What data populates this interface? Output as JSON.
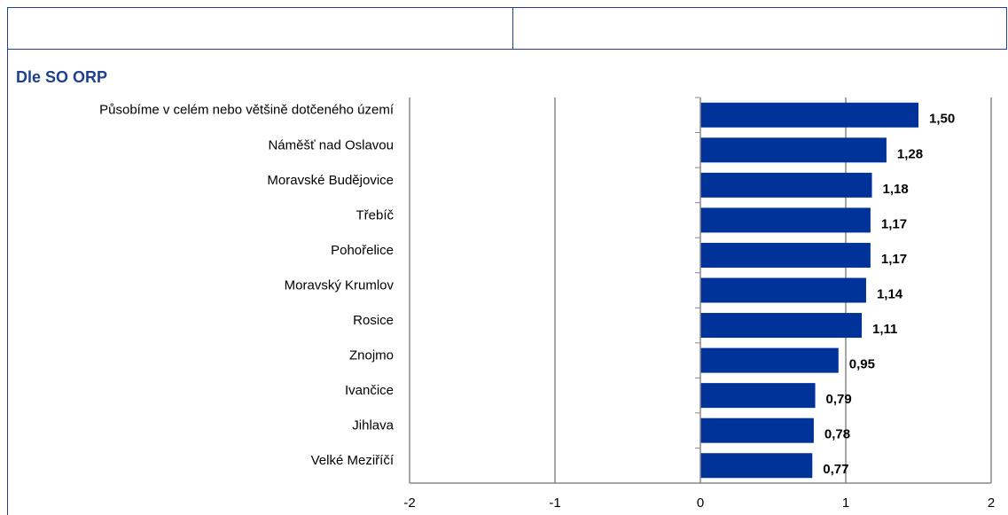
{
  "chart_data": {
    "type": "barh",
    "title": "Dle SO ORP",
    "categories": [
      "Působíme v celém nebo většině dotčeného území",
      "Náměšť nad Oslavou",
      "Moravské Budějovice",
      "Třebíč",
      "Pohořelice",
      "Moravský Krumlov",
      "Rosice",
      "Znojmo",
      "Ivančice",
      "Jihlava",
      "Velké Meziříčí"
    ],
    "values": [
      1.5,
      1.28,
      1.18,
      1.17,
      1.17,
      1.14,
      1.11,
      0.95,
      0.79,
      0.78,
      0.77
    ],
    "value_labels": [
      "1,50",
      "1,28",
      "1,18",
      "1,17",
      "1,17",
      "1,14",
      "1,11",
      "0,95",
      "0,79",
      "0,78",
      "0,77"
    ],
    "color": "#003399",
    "xlim": [
      -2,
      2
    ],
    "xticks": [
      -2,
      -1,
      0,
      1,
      2
    ],
    "grid": true
  }
}
